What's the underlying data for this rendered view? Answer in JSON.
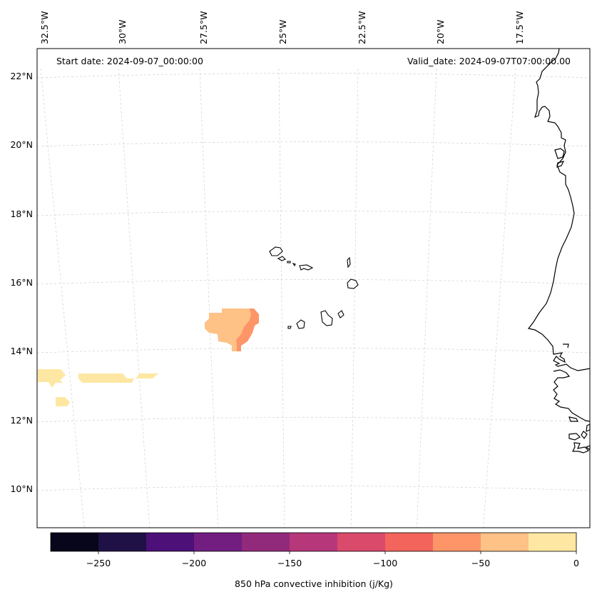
{
  "map": {
    "start_date_text": "Start date: 2024-09-07_00:00:00",
    "valid_date_text": "Valid_date: 2024-09-07T07:00:00.00",
    "lon_ticks": [
      "32.5°W",
      "30°W",
      "27.5°W",
      "25°W",
      "22.5°W",
      "20°W",
      "17.5°W"
    ],
    "lat_ticks": [
      "22°N",
      "20°N",
      "18°N",
      "16°N",
      "14°N",
      "12°N",
      "10°N"
    ],
    "features": [
      "West African coastline",
      "Cape Verde islands"
    ]
  },
  "colorbar": {
    "label": "850 hPa convective inhibition (j/Kg)",
    "tick_labels": [
      "−250",
      "−200",
      "−150",
      "−100",
      "−50",
      "0"
    ],
    "bounds": [
      -275,
      -250,
      -225,
      -200,
      -175,
      -150,
      -125,
      -100,
      -75,
      -50,
      -25,
      0
    ],
    "colors": [
      "#07061a",
      "#1f1146",
      "#4c1078",
      "#711e80",
      "#922a7c",
      "#b6377a",
      "#da4a6b",
      "#f3655c",
      "#fd9568",
      "#fec186",
      "#fde7a2"
    ]
  },
  "fields": [
    {
      "name": "cin-patch-central",
      "level_range": [
        -50,
        -25
      ],
      "color": "#fec186"
    },
    {
      "name": "cin-patch-central-core",
      "level_range": [
        -75,
        -50
      ],
      "color": "#fd9568"
    },
    {
      "name": "cin-patch-west",
      "level_range": [
        -25,
        0
      ],
      "color": "#fde7a2"
    }
  ]
}
